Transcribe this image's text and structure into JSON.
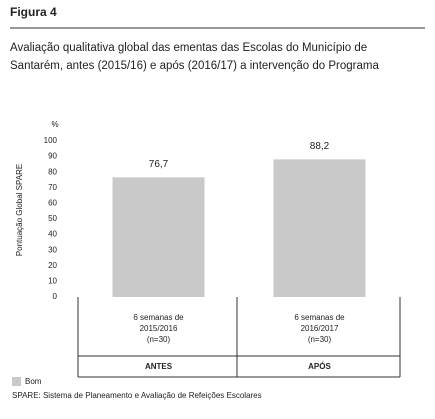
{
  "chart_data": {
    "type": "bar",
    "figure_label": "Figura 4",
    "title": [
      "Avaliação qualitativa global das ementas das Escolas do Município de",
      "Santarém, antes (2015/16) e após (2016/17) a intervenção do Programa"
    ],
    "y_label": "Pontuação Global SPARE",
    "y_unit": "%",
    "categories": [
      [
        "6 semanas de",
        "2015/2016",
        "(n=30)"
      ],
      [
        "6 semanas de",
        "2016/2017",
        "(n=30)"
      ]
    ],
    "groups": [
      "ANTES",
      "APÓS"
    ],
    "series": [
      {
        "name": "Bom",
        "color": "#c9c9c9",
        "values": [
          76.7,
          88.2
        ],
        "value_labels": [
          "76,7",
          "88,2"
        ]
      }
    ],
    "ylim": [
      0,
      100
    ],
    "yticks": [
      0,
      10,
      20,
      30,
      40,
      50,
      60,
      70,
      80,
      90,
      100
    ],
    "source": "SPARE: Sistema de Planeamento e Avaliação de Refeições Escolares"
  }
}
